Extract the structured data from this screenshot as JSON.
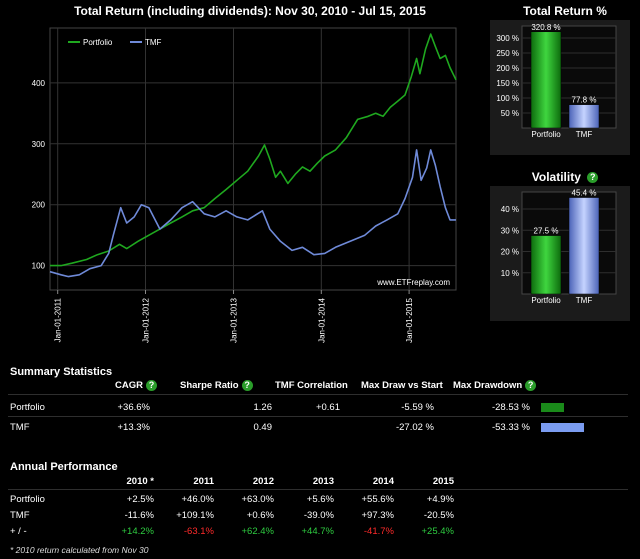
{
  "main_chart": {
    "title": "Total Return (including dividends): Nov 30, 2010 - Jul 15, 2015",
    "watermark": "www.ETFreplay.com",
    "colors": {
      "portfolio": "#1fa81f",
      "tmf": "#6f8ad8"
    },
    "legend": [
      "Portfolio",
      "TMF"
    ]
  },
  "total_return_chart": {
    "title": "Total Return %",
    "yticks": [
      "300 %",
      "250 %",
      "200 %",
      "150 %",
      "100 %",
      "50 %"
    ],
    "bars": [
      {
        "label": "Portfolio",
        "value": 320.8,
        "text": "320.8 %"
      },
      {
        "label": "TMF",
        "value": 77.8,
        "text": "77.8 %"
      }
    ]
  },
  "volatility_chart": {
    "title": "Volatility",
    "yticks": [
      "40 %",
      "30 %",
      "20 %",
      "10 %"
    ],
    "bars": [
      {
        "label": "Portfolio",
        "value": 27.5,
        "text": "27.5 %"
      },
      {
        "label": "TMF",
        "value": 45.4,
        "text": "45.4 %"
      }
    ]
  },
  "summary": {
    "title": "Summary Statistics",
    "headers": {
      "cagr": "CAGR",
      "sharpe": "Sharpe Ratio",
      "corr": "TMF Correlation",
      "maxdraw_start": "Max Draw vs Start",
      "maxdd": "Max Drawdown"
    },
    "rows": [
      {
        "name": "Portfolio",
        "cagr": "+36.6%",
        "sharpe": "1.26",
        "corr": "+0.61",
        "maxdraw_start": "-5.59 %",
        "maxdd": "-28.53 %",
        "dd_fraction": 0.2853
      },
      {
        "name": "TMF",
        "cagr": "+13.3%",
        "sharpe": "0.49",
        "corr": "",
        "maxdraw_start": "-27.02 %",
        "maxdd": "-53.33 %",
        "dd_fraction": 0.5333
      }
    ]
  },
  "annual": {
    "title": "Annual Performance",
    "years": [
      "2010 *",
      "2011",
      "2012",
      "2013",
      "2014",
      "2015"
    ],
    "rows": [
      {
        "name": "Portfolio",
        "values": [
          "+2.5%",
          "+46.0%",
          "+63.0%",
          "+5.6%",
          "+55.6%",
          "+4.9%"
        ]
      },
      {
        "name": "TMF",
        "values": [
          "-11.6%",
          "+109.1%",
          "+0.6%",
          "-39.0%",
          "+97.3%",
          "-20.5%"
        ]
      },
      {
        "name": "+ / -",
        "values": [
          "+14.2%",
          "-63.1%",
          "+62.4%",
          "+44.7%",
          "-41.7%",
          "+25.4%"
        ]
      }
    ],
    "footnote": "* 2010 return calculated from Nov 30"
  },
  "chart_data": [
    {
      "type": "line",
      "title": "Total Return (including dividends): Nov 30, 2010 - Jul 15, 2015",
      "x_ticks": [
        "Jan-01-2011",
        "Jan-01-2012",
        "Jan-01-2013",
        "Jan-01-2014",
        "Jan-01-2015"
      ],
      "y_ticks": [
        100,
        200,
        300,
        400
      ],
      "ylim": [
        60,
        490
      ],
      "xlim": [
        "2010-11-30",
        "2015-07-15"
      ],
      "grid": true,
      "legend_position": "top-left",
      "series": [
        {
          "name": "Portfolio",
          "points": [
            [
              "2010-11-30",
              100
            ],
            [
              "2011-01-15",
              100
            ],
            [
              "2011-03-01",
              104
            ],
            [
              "2011-05-01",
              110
            ],
            [
              "2011-06-15",
              118
            ],
            [
              "2011-08-01",
              124
            ],
            [
              "2011-09-15",
              135
            ],
            [
              "2011-10-15",
              128
            ],
            [
              "2011-12-01",
              140
            ],
            [
              "2012-01-15",
              150
            ],
            [
              "2012-03-01",
              160
            ],
            [
              "2012-04-15",
              170
            ],
            [
              "2012-06-01",
              180
            ],
            [
              "2012-07-15",
              190
            ],
            [
              "2012-09-01",
              195
            ],
            [
              "2012-10-15",
              210
            ],
            [
              "2012-12-01",
              225
            ],
            [
              "2013-01-15",
              240
            ],
            [
              "2013-03-01",
              255
            ],
            [
              "2013-04-15",
              280
            ],
            [
              "2013-05-10",
              298
            ],
            [
              "2013-06-01",
              275
            ],
            [
              "2013-06-25",
              245
            ],
            [
              "2013-07-15",
              255
            ],
            [
              "2013-08-15",
              235
            ],
            [
              "2013-09-15",
              250
            ],
            [
              "2013-10-15",
              262
            ],
            [
              "2013-11-15",
              255
            ],
            [
              "2013-12-15",
              268
            ],
            [
              "2014-01-15",
              280
            ],
            [
              "2014-03-01",
              290
            ],
            [
              "2014-04-15",
              310
            ],
            [
              "2014-06-01",
              340
            ],
            [
              "2014-07-15",
              345
            ],
            [
              "2014-08-15",
              350
            ],
            [
              "2014-09-15",
              345
            ],
            [
              "2014-10-15",
              360
            ],
            [
              "2014-11-15",
              370
            ],
            [
              "2014-12-15",
              380
            ],
            [
              "2015-01-10",
              410
            ],
            [
              "2015-02-01",
              440
            ],
            [
              "2015-02-15",
              415
            ],
            [
              "2015-03-10",
              455
            ],
            [
              "2015-04-01",
              480
            ],
            [
              "2015-04-20",
              460
            ],
            [
              "2015-05-10",
              440
            ],
            [
              "2015-06-01",
              445
            ],
            [
              "2015-06-20",
              425
            ],
            [
              "2015-07-15",
              405
            ]
          ]
        },
        {
          "name": "TMF",
          "points": [
            [
              "2010-11-30",
              90
            ],
            [
              "2011-01-15",
              85
            ],
            [
              "2011-02-15",
              82
            ],
            [
              "2011-04-01",
              85
            ],
            [
              "2011-05-15",
              95
            ],
            [
              "2011-07-01",
              100
            ],
            [
              "2011-08-01",
              120
            ],
            [
              "2011-08-20",
              150
            ],
            [
              "2011-09-20",
              195
            ],
            [
              "2011-10-15",
              170
            ],
            [
              "2011-11-15",
              180
            ],
            [
              "2011-12-15",
              200
            ],
            [
              "2012-01-15",
              195
            ],
            [
              "2012-03-01",
              160
            ],
            [
              "2012-04-15",
              175
            ],
            [
              "2012-06-01",
              195
            ],
            [
              "2012-07-15",
              205
            ],
            [
              "2012-09-01",
              185
            ],
            [
              "2012-10-15",
              180
            ],
            [
              "2012-12-01",
              190
            ],
            [
              "2013-01-15",
              180
            ],
            [
              "2013-03-01",
              175
            ],
            [
              "2013-05-01",
              190
            ],
            [
              "2013-06-01",
              160
            ],
            [
              "2013-07-15",
              140
            ],
            [
              "2013-09-01",
              125
            ],
            [
              "2013-10-15",
              130
            ],
            [
              "2013-12-01",
              118
            ],
            [
              "2014-01-15",
              120
            ],
            [
              "2014-03-01",
              130
            ],
            [
              "2014-05-01",
              140
            ],
            [
              "2014-07-01",
              150
            ],
            [
              "2014-08-15",
              165
            ],
            [
              "2014-10-01",
              175
            ],
            [
              "2014-11-15",
              185
            ],
            [
              "2014-12-15",
              210
            ],
            [
              "2015-01-15",
              245
            ],
            [
              "2015-02-01",
              290
            ],
            [
              "2015-02-20",
              240
            ],
            [
              "2015-03-15",
              260
            ],
            [
              "2015-04-01",
              290
            ],
            [
              "2015-04-20",
              265
            ],
            [
              "2015-05-10",
              230
            ],
            [
              "2015-06-01",
              195
            ],
            [
              "2015-06-20",
              175
            ],
            [
              "2015-07-15",
              175
            ]
          ]
        }
      ]
    },
    {
      "type": "bar",
      "title": "Total Return %",
      "categories": [
        "Portfolio",
        "TMF"
      ],
      "values": [
        320.8,
        77.8
      ],
      "ylim": [
        0,
        340
      ]
    },
    {
      "type": "bar",
      "title": "Volatility",
      "categories": [
        "Portfolio",
        "TMF"
      ],
      "values": [
        27.5,
        45.4
      ],
      "ylim": [
        0,
        48
      ]
    }
  ]
}
